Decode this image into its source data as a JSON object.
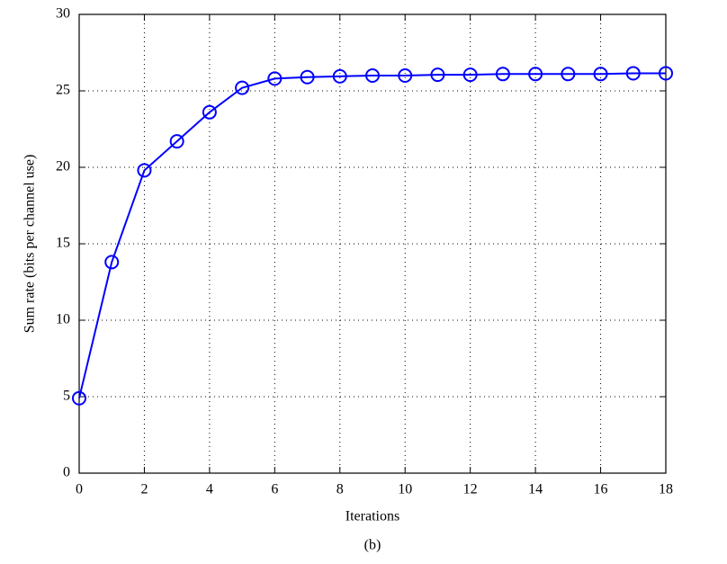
{
  "chart_data": {
    "type": "line",
    "x_label": "Iterations",
    "y_label": "Sum rate (bits per channel use)",
    "caption": "(b)",
    "x": [
      0,
      1,
      2,
      3,
      4,
      5,
      6,
      7,
      8,
      9,
      10,
      11,
      12,
      13,
      14,
      15,
      16,
      17,
      18
    ],
    "series": [
      {
        "color": "#0000ff",
        "marker": "circle",
        "values": [
          4.9,
          13.8,
          19.8,
          21.7,
          23.6,
          25.2,
          25.8,
          25.9,
          25.95,
          26.0,
          26.0,
          26.05,
          26.05,
          26.1,
          26.1,
          26.1,
          26.1,
          26.15,
          26.15
        ]
      }
    ],
    "xlim": [
      0,
      18
    ],
    "ylim": [
      0,
      30
    ],
    "xticks": [
      0,
      2,
      4,
      6,
      8,
      10,
      12,
      14,
      16,
      18
    ],
    "yticks": [
      0,
      5,
      10,
      15,
      20,
      25,
      30
    ],
    "grid": true
  }
}
